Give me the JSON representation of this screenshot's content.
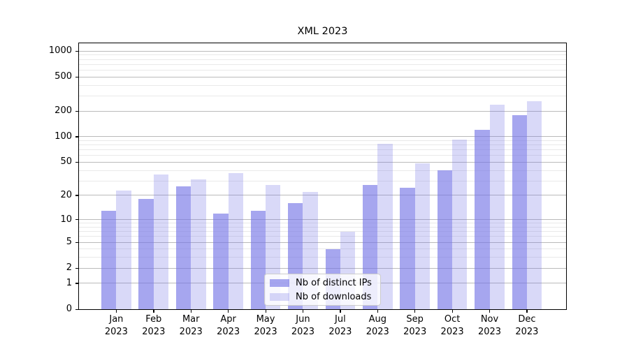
{
  "title": "XML 2023",
  "chart_data": {
    "type": "bar",
    "title": "XML 2023",
    "categories": [
      "Jan 2023",
      "Feb 2023",
      "Mar 2023",
      "Apr 2023",
      "May 2023",
      "Jun 2023",
      "Jul 2023",
      "Aug 2023",
      "Sep 2023",
      "Oct 2023",
      "Nov 2023",
      "Dec 2023"
    ],
    "series": [
      {
        "name": "Nb of distinct IPs",
        "values": [
          13,
          18,
          26,
          12,
          13,
          16,
          4,
          27,
          25,
          40,
          120,
          180
        ],
        "fill": "rgba(114,114,229,0.63)"
      },
      {
        "name": "Nb of downloads",
        "values": [
          23,
          36,
          31,
          37,
          27,
          22,
          7,
          83,
          49,
          93,
          235,
          260
        ],
        "fill": "rgba(114,114,229,0.27)"
      }
    ],
    "yscale": "log1p",
    "yticks": [
      0,
      1,
      2,
      5,
      10,
      20,
      50,
      100,
      200,
      500,
      1000
    ],
    "minor_gridlines": [
      3,
      4,
      6,
      7,
      8,
      9,
      30,
      40,
      60,
      70,
      80,
      90,
      300,
      400,
      600,
      700,
      800,
      900
    ],
    "ylim": [
      0,
      1230
    ],
    "xlim": [
      -1,
      12.05
    ],
    "bar_width_units": 0.4,
    "grid": true,
    "legend_position": "lower center",
    "colors": {
      "bar_base": "#7272e5",
      "grid_major": "#bababa",
      "grid_minor": "#e9e9e9",
      "frame": "#000000",
      "legend_border": "#cccccc"
    }
  }
}
